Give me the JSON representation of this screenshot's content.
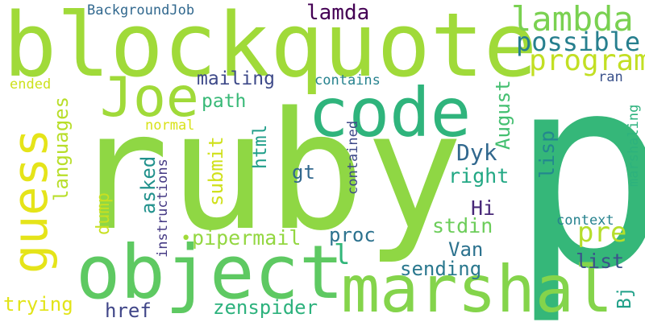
{
  "words": [
    {
      "text": "ruby",
      "color": "#8fd744"
    },
    {
      "text": "p",
      "color": "#35b779"
    },
    {
      "text": "blockquote",
      "color": "#a0da39"
    },
    {
      "text": "object",
      "color": "#5ec962"
    },
    {
      "text": "code",
      "color": "#2fb47c"
    },
    {
      "text": "marshal",
      "color": "#84d44b"
    },
    {
      "text": "Joe",
      "color": "#a0da39"
    },
    {
      "text": "guess",
      "color": "#e5e419"
    },
    {
      "text": "lambda",
      "color": "#7ad151"
    },
    {
      "text": "program",
      "color": "#c2df23"
    },
    {
      "text": "possible",
      "color": "#277f8e"
    },
    {
      "text": "pre",
      "color": "#b5de2b"
    },
    {
      "text": "mailing",
      "color": "#3e4a89"
    },
    {
      "text": "lamda",
      "color": "#440154"
    },
    {
      "text": "BackgroundJob",
      "color": "#31688e"
    },
    {
      "text": "path",
      "color": "#38b977"
    },
    {
      "text": "contains",
      "color": "#26828e"
    },
    {
      "text": "ended",
      "color": "#cde11d"
    },
    {
      "text": "languages",
      "color": "#b8de29"
    },
    {
      "text": "normal",
      "color": "#d8e219"
    },
    {
      "text": "submit",
      "color": "#d0e11c"
    },
    {
      "text": "html",
      "color": "#1f9e89"
    },
    {
      "text": "August",
      "color": "#44bf70"
    },
    {
      "text": "lisp",
      "color": "#23888e"
    },
    {
      "text": "ran",
      "color": "#3b528b"
    },
    {
      "text": "Dyk",
      "color": "#31688e"
    },
    {
      "text": "right",
      "color": "#22a884"
    },
    {
      "text": "asked",
      "color": "#21918c"
    },
    {
      "text": "gt",
      "color": "#31688e"
    },
    {
      "text": "contained",
      "color": "#3e4a89"
    },
    {
      "text": "marshaling",
      "color": "#2db27d"
    },
    {
      "text": "Hi",
      "color": "#482878"
    },
    {
      "text": "dump",
      "color": "#c8e020"
    },
    {
      "text": "stdin",
      "color": "#6ccd5a"
    },
    {
      "text": "context",
      "color": "#26828e"
    },
    {
      "text": "instructions",
      "color": "#443983"
    },
    {
      "text": "pipermail",
      "color": "#93d741"
    },
    {
      "text": "proc",
      "color": "#2c728e"
    },
    {
      "text": "l",
      "color": "#32b67a"
    },
    {
      "text": "Van",
      "color": "#2c728e"
    },
    {
      "text": "sending",
      "color": "#2a788e"
    },
    {
      "text": "list",
      "color": "#3b528b"
    },
    {
      "text": "Bj",
      "color": "#1fa088"
    },
    {
      "text": "trying",
      "color": "#e2e418"
    },
    {
      "text": "href",
      "color": "#404688"
    },
    {
      "text": "zenspider",
      "color": "#2db27d"
    }
  ],
  "bullet": {
    "color": "#a0da39"
  }
}
